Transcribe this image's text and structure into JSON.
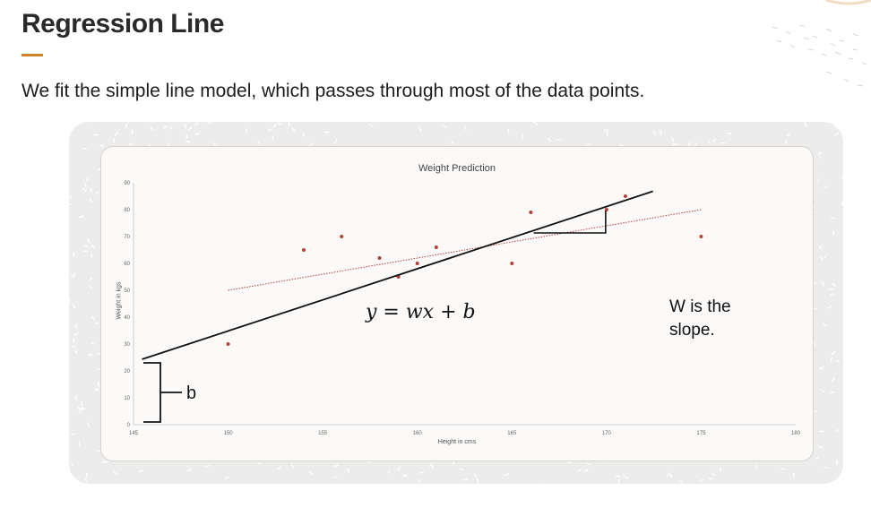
{
  "slide": {
    "title": "Regression Line",
    "subtitle": "We fit the simple line model, which passes through most of the data points.",
    "equation": "y = wx + b",
    "slope_note": "W is the slope.",
    "intercept_label": "b",
    "accent_color": "#c8832b"
  },
  "chart_data": {
    "type": "scatter",
    "title": "Weight Prediction",
    "xlabel": "Height in cms",
    "ylabel": "Weight in kgs",
    "xlim": [
      145,
      180
    ],
    "ylim": [
      0,
      90
    ],
    "xticks": [
      145,
      150,
      155,
      160,
      165,
      170,
      175,
      180
    ],
    "yticks": [
      0,
      10,
      20,
      30,
      40,
      50,
      60,
      70,
      80,
      90
    ],
    "points": [
      {
        "x": 150,
        "y": 30
      },
      {
        "x": 154,
        "y": 65
      },
      {
        "x": 156,
        "y": 70
      },
      {
        "x": 158,
        "y": 62
      },
      {
        "x": 159,
        "y": 55
      },
      {
        "x": 160,
        "y": 60
      },
      {
        "x": 161,
        "y": 66
      },
      {
        "x": 165,
        "y": 60
      },
      {
        "x": 166,
        "y": 79
      },
      {
        "x": 170,
        "y": 80
      },
      {
        "x": 171,
        "y": 85
      },
      {
        "x": 175,
        "y": 70
      }
    ],
    "trendline": {
      "x": [
        150,
        175
      ],
      "y": [
        50,
        80
      ],
      "style": "dotted",
      "color": "#b5423a"
    },
    "regression_line": {
      "x": [
        145.5,
        172.5
      ],
      "y": [
        24,
        86.5
      ],
      "color": "#111111"
    },
    "point_color": "#b5423a",
    "grid": false
  }
}
